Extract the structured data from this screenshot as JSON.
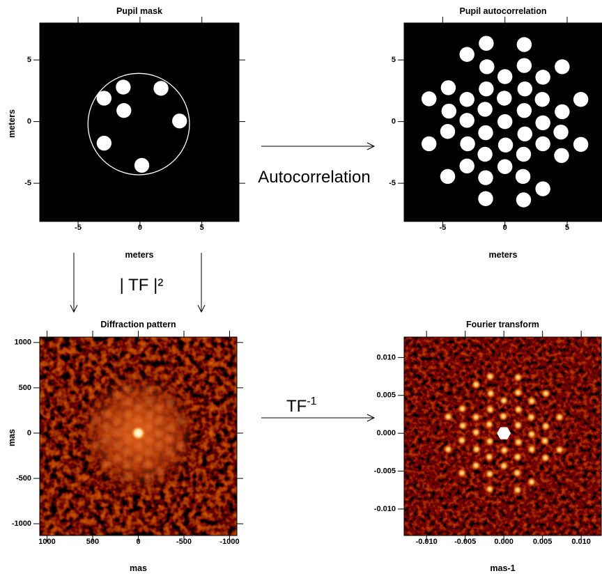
{
  "chart_data": [
    {
      "type": "image",
      "title": "Pupil mask",
      "xlabel": "meters",
      "ylabel": "meters",
      "colormap": "gray",
      "x": [
        -2.9,
        -1.35,
        1.7,
        -1.3,
        3.2,
        -2.9,
        0.15
      ],
      "y": [
        1.9,
        2.8,
        2.7,
        0.9,
        0.05,
        -1.75,
        -3.55
      ],
      "xlim": [
        -8.1,
        8
      ],
      "ylim": [
        -8.1,
        8
      ],
      "xticks": [
        -5,
        0,
        5
      ],
      "yticks": [
        -5,
        0,
        5
      ]
    },
    {
      "type": "image",
      "title": "Pupil autocorrelation",
      "xlabel": "meters",
      "colormap": "gray",
      "xlim": [
        -8.1,
        7.8
      ],
      "ylim": [
        -8.1,
        8
      ],
      "xticks": [
        -5,
        0,
        5
      ],
      "yticks": [
        -5,
        0,
        5
      ]
    },
    {
      "type": "image",
      "title": "Diffraction pattern",
      "xlabel": "mas",
      "ylabel": "mas",
      "colormap": "hot",
      "xlim": [
        1080,
        -1080
      ],
      "ylim": [
        -1130,
        1060
      ],
      "xticks": [
        1000,
        500,
        0,
        -500,
        -1000
      ],
      "yticks": [
        -1000,
        -500,
        0,
        500,
        1000
      ]
    },
    {
      "type": "image",
      "title": "Fourier transform",
      "xlabel": "mas-1",
      "colormap": "hot",
      "xlim": [
        -0.0129,
        0.0126
      ],
      "ylim": [
        -0.0135,
        0.0127
      ],
      "xticks": [
        {
          "value": -0.01,
          "label": "-0.010"
        },
        {
          "value": -0.005,
          "label": "-0.005"
        },
        {
          "value": 0,
          "label": "0.000"
        },
        {
          "value": 0.005,
          "label": "0.005"
        },
        {
          "value": 0.01,
          "label": "0.010"
        }
      ],
      "yticks": [
        {
          "value": -0.01,
          "label": "-0.010"
        },
        {
          "value": -0.005,
          "label": "-0.005"
        },
        {
          "value": 0,
          "label": "0.000"
        },
        {
          "value": 0.005,
          "label": "0.005"
        },
        {
          "value": 0.01,
          "label": "0.010"
        }
      ]
    }
  ],
  "annotations": {
    "autocorrelation": "Autocorrelation",
    "power": "| TF |²",
    "inverse": "TF",
    "inverse_exponent": "-1"
  }
}
